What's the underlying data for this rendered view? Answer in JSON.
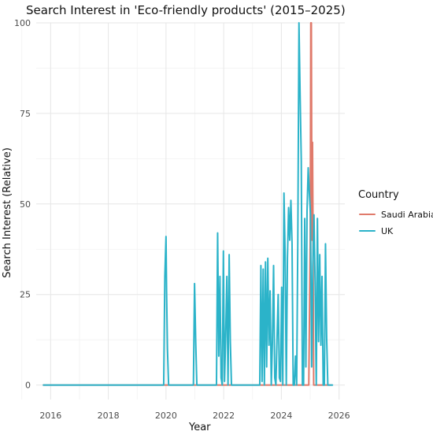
{
  "chart_data": {
    "type": "line",
    "title": "Search Interest in 'Eco-friendly products' (2015–2025)",
    "xlabel": "Year",
    "ylabel": "Search Interest (Relative)",
    "xlim": [
      2015.5,
      2026.2
    ],
    "ylim": [
      -4,
      100
    ],
    "x_ticks": [
      2016,
      2018,
      2020,
      2022,
      2024,
      2026
    ],
    "x_tick_labels": [
      "2016",
      "2018",
      "2020",
      "2022",
      "2024",
      "2026"
    ],
    "y_ticks": [
      0,
      25,
      50,
      75,
      100
    ],
    "y_tick_labels": [
      "0",
      "25",
      "50",
      "75",
      "100"
    ],
    "grid": true,
    "legend": {
      "title": "Country",
      "position": "right"
    },
    "series": [
      {
        "name": "Saudi Arabia",
        "color": "#e07a6b",
        "x": [
          2015.75,
          2024.95,
          2025.0,
          2025.02,
          2025.04,
          2025.06,
          2025.08,
          2025.1,
          2025.12,
          2025.14,
          2025.16,
          2025.5,
          2025.75
        ],
        "y": [
          0,
          0,
          40,
          100,
          100,
          40,
          67,
          37,
          0,
          0,
          0,
          0,
          0
        ]
      },
      {
        "name": "UK",
        "color": "#2bb3c9",
        "x": [
          2015.75,
          2019.92,
          2019.96,
          2020.0,
          2020.02,
          2020.05,
          2020.09,
          2020.13,
          2020.95,
          2020.99,
          2021.03,
          2021.07,
          2021.1,
          2021.75,
          2021.79,
          2021.83,
          2021.87,
          2021.91,
          2021.95,
          2021.99,
          2022.03,
          2022.07,
          2022.11,
          2022.15,
          2022.19,
          2022.23,
          2022.27,
          2022.31,
          2022.35,
          2022.39,
          2022.43,
          2022.47,
          2023.25,
          2023.29,
          2023.33,
          2023.37,
          2023.41,
          2023.45,
          2023.49,
          2023.53,
          2023.57,
          2023.61,
          2023.65,
          2023.69,
          2023.73,
          2023.77,
          2023.81,
          2023.85,
          2023.89,
          2023.93,
          2023.97,
          2024.01,
          2024.05,
          2024.09,
          2024.13,
          2024.17,
          2024.21,
          2024.25,
          2024.29,
          2024.33,
          2024.37,
          2024.41,
          2024.45,
          2024.49,
          2024.53,
          2024.57,
          2024.61,
          2024.65,
          2024.69,
          2024.73,
          2024.77,
          2024.81,
          2024.85,
          2024.89,
          2024.93,
          2024.97,
          2025.01,
          2025.05,
          2025.09,
          2025.13,
          2025.17,
          2025.21,
          2025.25,
          2025.29,
          2025.33,
          2025.37,
          2025.41,
          2025.45,
          2025.49,
          2025.53,
          2025.57,
          2025.61,
          2025.65,
          2025.69,
          2025.73,
          2025.77
        ],
        "y": [
          0,
          0,
          30,
          41,
          26,
          10,
          0,
          0,
          0,
          28,
          12,
          0,
          0,
          0,
          42,
          8,
          30,
          2,
          0,
          37,
          1,
          14,
          30,
          0,
          36,
          12,
          0,
          0,
          0,
          0,
          0,
          0,
          0,
          33,
          1,
          32,
          0,
          34,
          5,
          35,
          11,
          26,
          0,
          12,
          33,
          2,
          0,
          13,
          25,
          2,
          1,
          27,
          0,
          53,
          36,
          0,
          35,
          49,
          40,
          51,
          39,
          0,
          0,
          8,
          0,
          40,
          100,
          80,
          62,
          0,
          0,
          46,
          5,
          48,
          60,
          53,
          47,
          5,
          33,
          47,
          28,
          0,
          46,
          12,
          36,
          11,
          30,
          0,
          0,
          39,
          13,
          0,
          0,
          0,
          0,
          0
        ]
      }
    ]
  }
}
